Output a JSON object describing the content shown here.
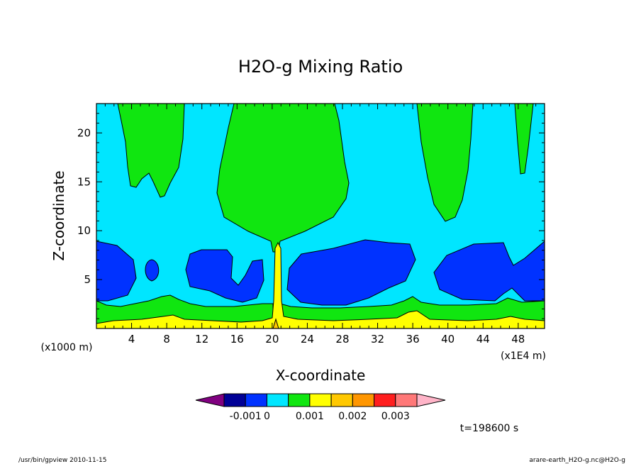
{
  "chart_data": {
    "type": "contour",
    "title": "H2O-g Mixing Ratio",
    "xlabel": "X-coordinate",
    "ylabel": "Z-coordinate",
    "x_unit": "(x1E4 m)",
    "y_unit": "(x1000 m)",
    "xlim": [
      0,
      51
    ],
    "ylim": [
      0,
      23
    ],
    "x_ticks": [
      4,
      8,
      12,
      16,
      20,
      24,
      28,
      32,
      36,
      40,
      44,
      48
    ],
    "x_tick_labels": [
      "4",
      "8",
      "12",
      "16",
      "20",
      "24",
      "28",
      "32",
      "36",
      "40",
      "44",
      "48"
    ],
    "y_ticks": [
      5,
      10,
      15,
      20
    ],
    "y_tick_labels": [
      "5",
      "10",
      "15",
      "20"
    ],
    "contour_levels": [
      -0.0015,
      -0.001,
      -0.0005,
      0,
      0.0005,
      0.001,
      0.0015,
      0.002,
      0.0025,
      0.003
    ],
    "colorbar": {
      "colors": [
        "#800080",
        "#000096",
        "#0032ff",
        "#00e6ff",
        "#10e610",
        "#ffff00",
        "#ffc800",
        "#ff9600",
        "#ff1e1e",
        "#ff7878",
        "#ffb4c8"
      ],
      "tick_labels": [
        "-0.001",
        "0",
        "0.001",
        "0.002",
        "0.003"
      ]
    },
    "regions": {
      "background_color": "#00e6ff",
      "upper_green_color": "#10e610",
      "blue_color": "#0032ff",
      "surface_green_color": "#10e610",
      "surface_yellow_color": "#ffff00"
    }
  },
  "annotations": {
    "time": "t=198600 s",
    "footer_left": "/usr/bin/gpview   2010-11-15",
    "footer_right": "arare-earth_H2O-g.nc@H2O-g"
  }
}
